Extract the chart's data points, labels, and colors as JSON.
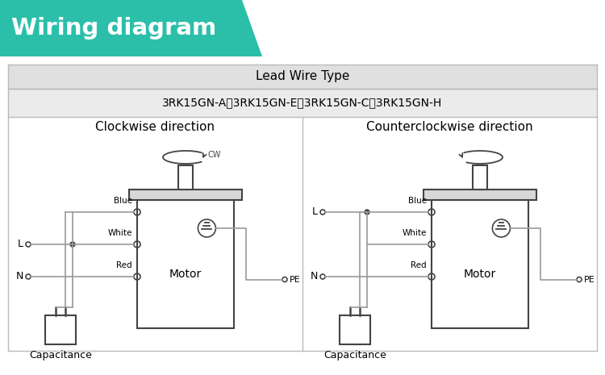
{
  "title": "Wiring diagram",
  "title_bg": "#2bbfaa",
  "title_text_color": "#ffffff",
  "header_title": "Lead Wire Type",
  "header_subtitle": "3RK15GN-A、3RK15GN-E、3RK15GN-C、3RK15GN-H",
  "left_label": "Clockwise direction",
  "right_label": "Counterclockwise direction",
  "bg_color": "#ffffff",
  "panel_border": "#bbbbbb",
  "wire_color": "#999999",
  "motor_border": "#444444",
  "motor_text": "Motor",
  "cap_text": "Capacitance",
  "pe_text": "PE",
  "cw_text": "CW",
  "labels": [
    "Blue",
    "White",
    "Red"
  ],
  "header_bg": "#e0e0e0",
  "sub_bg": "#ebebeb"
}
